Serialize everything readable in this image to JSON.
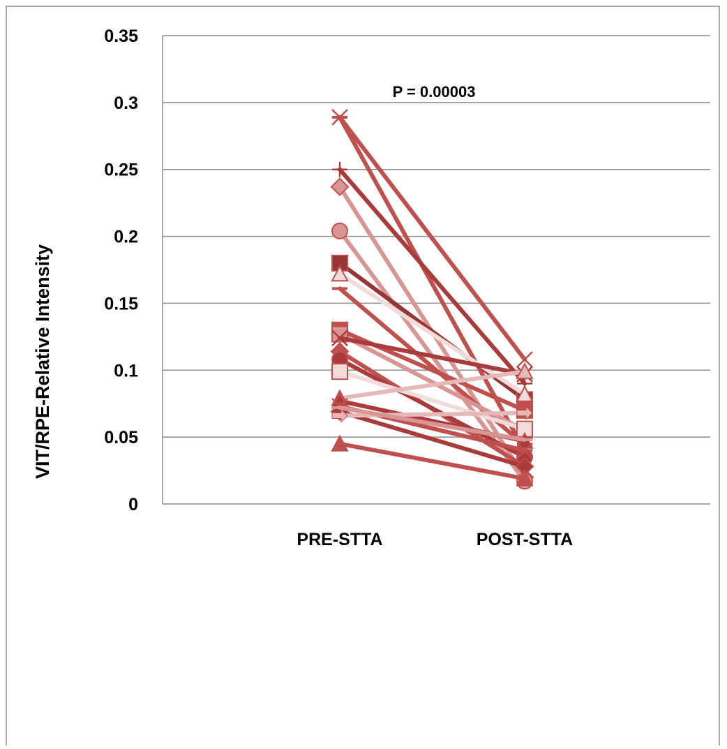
{
  "chart_data": {
    "type": "line",
    "title": "",
    "annotation": "P = 0.00003",
    "ylabel": "VIT/RPE-Relative Intensity",
    "xlabel": "",
    "categories": [
      "PRE-STTA",
      "POST-STTA"
    ],
    "ylim": [
      0,
      0.35
    ],
    "yticks": [
      0,
      0.05,
      0.1,
      0.15,
      0.2,
      0.25,
      0.3,
      0.35
    ],
    "ytick_labels": [
      "0",
      "0.05",
      "0.1",
      "0.15",
      "0.2",
      "0.25",
      "0.3",
      "0.35"
    ],
    "grid": "horizontal",
    "legend": "none",
    "series": [
      {
        "values": [
          0.289,
          0.108
        ],
        "marker": "x",
        "color": "#c0504d"
      },
      {
        "values": [
          0.289,
          0.04
        ],
        "marker": "dash",
        "color": "#c0504d"
      },
      {
        "values": [
          0.25,
          0.09
        ],
        "marker": "plus",
        "color": "#a93b3b"
      },
      {
        "values": [
          0.237,
          0.02
        ],
        "marker": "diamond",
        "color": "#d99594"
      },
      {
        "values": [
          0.204,
          0.017
        ],
        "marker": "circle",
        "color": "#d99594"
      },
      {
        "values": [
          0.18,
          0.078
        ],
        "marker": "square",
        "color": "#943634"
      },
      {
        "values": [
          0.172,
          0.082
        ],
        "marker": "triangle",
        "color": "#f2dcdb"
      },
      {
        "values": [
          0.161,
          0.044
        ],
        "marker": "dash",
        "color": "#c0504d"
      },
      {
        "values": [
          0.13,
          0.07
        ],
        "marker": "square",
        "color": "#c0504d"
      },
      {
        "values": [
          0.127,
          0.055
        ],
        "marker": "square",
        "color": "#d99594"
      },
      {
        "values": [
          0.124,
          0.097
        ],
        "marker": "x",
        "color": "#a93b3b"
      },
      {
        "values": [
          0.114,
          0.028
        ],
        "marker": "diamond",
        "color": "#c0504d"
      },
      {
        "values": [
          0.108,
          0.035
        ],
        "marker": "circle",
        "color": "#a93b3b"
      },
      {
        "values": [
          0.099,
          0.056
        ],
        "marker": "square",
        "color": "#f2dcdb"
      },
      {
        "values": [
          0.079,
          0.099
        ],
        "marker": "triangle",
        "color": "#e6b9b8"
      },
      {
        "values": [
          0.077,
          0.047
        ],
        "marker": "triangle",
        "color": "#a93b3b"
      },
      {
        "values": [
          0.073,
          0.04
        ],
        "marker": "x",
        "color": "#c0504d"
      },
      {
        "values": [
          0.069,
          0.028
        ],
        "marker": "diamond",
        "color": "#a93b3b"
      },
      {
        "values": [
          0.066,
          0.068
        ],
        "marker": "arrow",
        "color": "#e6b9b8"
      },
      {
        "values": [
          0.072,
          0.048
        ],
        "marker": "dash",
        "color": "#d99594"
      },
      {
        "values": [
          0.045,
          0.019
        ],
        "marker": "triangle",
        "color": "#c0504d"
      }
    ]
  }
}
